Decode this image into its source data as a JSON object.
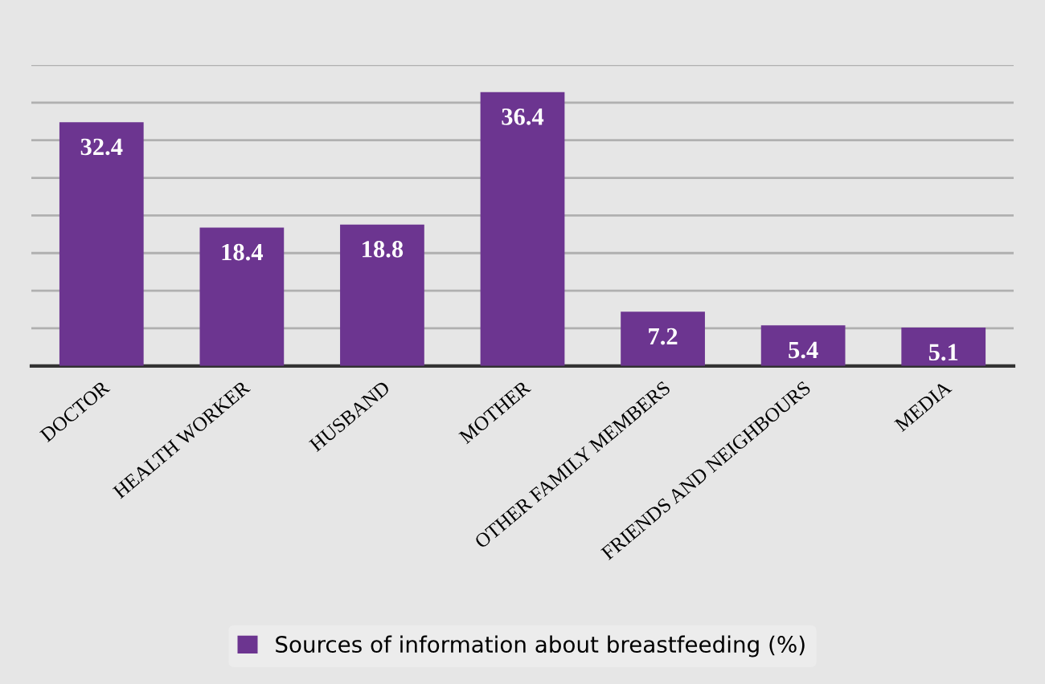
{
  "chart_data": {
    "type": "bar",
    "categories": [
      "DOCTOR",
      "HEALTH WORKER",
      "HUSBAND",
      "MOTHER",
      "OTHER FAMILY MEMBERS",
      "FRIENDS AND NEIGHBOURS",
      "MEDIA"
    ],
    "series": [
      {
        "name": "Sources of information about breastfeeding (%)",
        "color": "#6c3590",
        "values": [
          32.4,
          18.4,
          18.8,
          36.4,
          7.2,
          5.4,
          5.1
        ]
      }
    ],
    "data_labels": true,
    "ylim": [
      0,
      40
    ],
    "yticks": [
      {
        "value": 0,
        "label": null
      },
      {
        "value": 5,
        "label": null
      },
      {
        "value": 10,
        "label": null
      },
      {
        "value": 15,
        "label": null
      },
      {
        "value": 20,
        "label": null
      },
      {
        "value": 25,
        "label": null
      },
      {
        "value": 30,
        "label": null
      },
      {
        "value": 35,
        "label": null
      },
      {
        "value": 40,
        "label": null
      }
    ],
    "tick_labels": "x",
    "grid": "y",
    "legend": "bottom"
  }
}
